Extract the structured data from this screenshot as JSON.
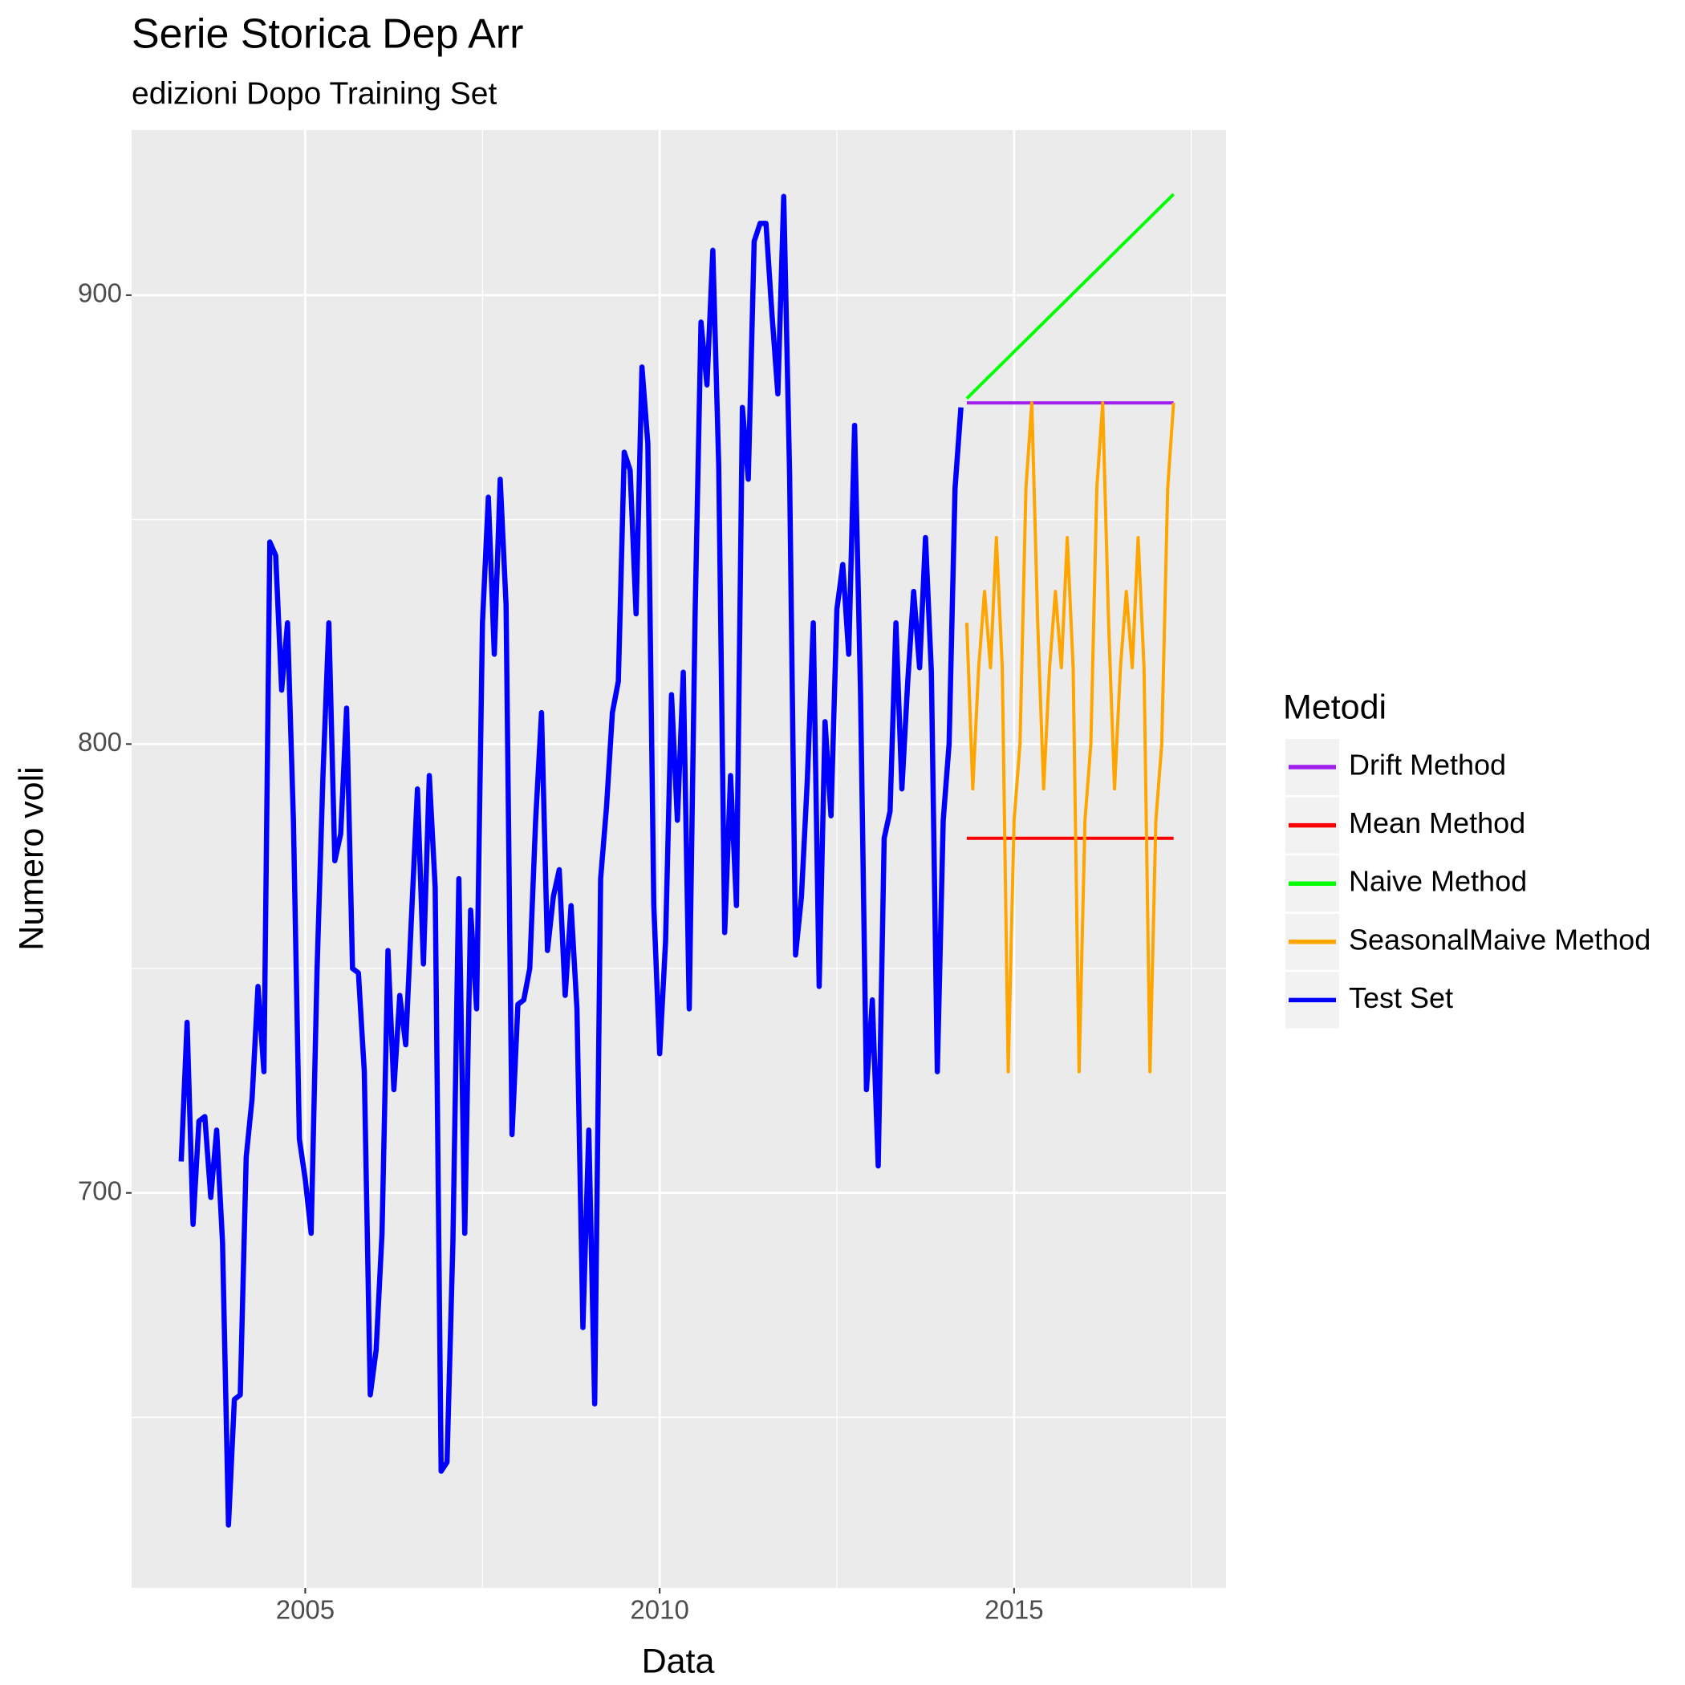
{
  "chart_data": {
    "type": "line",
    "title": "Serie Storica Dep Arr",
    "subtitle": "edizioni Dopo Training Set",
    "x_label": "Data",
    "y_label": "Numero voli",
    "legend_title": "Metodi",
    "legend_position": "right",
    "grid": true,
    "xlim": [
      2002.55,
      2017.99
    ],
    "ylim": [
      612,
      936.8
    ],
    "xticks": [
      2005,
      2010,
      2015
    ],
    "yticks": [
      700,
      800,
      900
    ],
    "xminor": [
      2007.5,
      2012.5,
      2017.5
    ],
    "yminor": [
      650,
      750,
      850
    ],
    "series": [
      {
        "name": "Drift Method",
        "color": "#A020F0",
        "width": 4,
        "x": [
          2014.333,
          2014.417,
          2014.5,
          2014.583,
          2014.667,
          2014.75,
          2014.833,
          2014.917,
          2015,
          2015.083,
          2015.167,
          2015.25,
          2015.333,
          2015.417,
          2015.5,
          2015.583,
          2015.667,
          2015.75,
          2015.833,
          2015.917,
          2016,
          2016.083,
          2016.167,
          2016.25,
          2016.333,
          2016.417,
          2016.5,
          2016.583,
          2016.667,
          2016.75,
          2016.833,
          2016.917,
          2017,
          2017.083,
          2017.167,
          2017.25
        ],
        "values": [
          876,
          876,
          876,
          876,
          876,
          876,
          876,
          876,
          876,
          876,
          876,
          876,
          876,
          876,
          876,
          876,
          876,
          876,
          876,
          876,
          876,
          876,
          876,
          876,
          876,
          876,
          876,
          876,
          876,
          876,
          876,
          876,
          876,
          876,
          876,
          876
        ]
      },
      {
        "name": "Mean Method",
        "color": "#FF0000",
        "width": 4,
        "x": [
          2014.333,
          2014.417,
          2014.5,
          2014.583,
          2014.667,
          2014.75,
          2014.833,
          2014.917,
          2015,
          2015.083,
          2015.167,
          2015.25,
          2015.333,
          2015.417,
          2015.5,
          2015.583,
          2015.667,
          2015.75,
          2015.833,
          2015.917,
          2016,
          2016.083,
          2016.167,
          2016.25,
          2016.333,
          2016.417,
          2016.5,
          2016.583,
          2016.667,
          2016.75,
          2016.833,
          2016.917,
          2017,
          2017.083,
          2017.167,
          2017.25
        ],
        "values": [
          779,
          779,
          779,
          779,
          779,
          779,
          779,
          779,
          779,
          779,
          779,
          779,
          779,
          779,
          779,
          779,
          779,
          779,
          779,
          779,
          779,
          779,
          779,
          779,
          779,
          779,
          779,
          779,
          779,
          779,
          779,
          779,
          779,
          779,
          779,
          779
        ]
      },
      {
        "name": "Naive Method",
        "color": "#00FF00",
        "width": 4,
        "x": [
          2014.333,
          2014.417,
          2014.5,
          2014.583,
          2014.667,
          2014.75,
          2014.833,
          2014.917,
          2015,
          2015.083,
          2015.167,
          2015.25,
          2015.333,
          2015.417,
          2015.5,
          2015.583,
          2015.667,
          2015.75,
          2015.833,
          2015.917,
          2016,
          2016.083,
          2016.167,
          2016.25,
          2016.333,
          2016.417,
          2016.5,
          2016.583,
          2016.667,
          2016.75,
          2016.833,
          2016.917,
          2017,
          2017.083,
          2017.167,
          2017.25
        ],
        "values": [
          877,
          878.3,
          879.6,
          880.9,
          882.2,
          883.5,
          884.8,
          886.1,
          887.4,
          888.7,
          890,
          891.3,
          892.6,
          893.9,
          895.2,
          896.5,
          897.8,
          899.1,
          900.4,
          901.7,
          903,
          904.3,
          905.6,
          906.9,
          908.2,
          909.5,
          910.8,
          912.1,
          913.4,
          914.7,
          916,
          917.3,
          918.6,
          919.9,
          921.2,
          922.5
        ]
      },
      {
        "name": "SeasonalMaive Method",
        "color": "#FFA500",
        "width": 4,
        "x": [
          2014.333,
          2014.417,
          2014.5,
          2014.583,
          2014.667,
          2014.75,
          2014.833,
          2014.917,
          2015,
          2015.083,
          2015.167,
          2015.25,
          2015.333,
          2015.417,
          2015.5,
          2015.583,
          2015.667,
          2015.75,
          2015.833,
          2015.917,
          2016,
          2016.083,
          2016.167,
          2016.25,
          2016.333,
          2016.417,
          2016.5,
          2016.583,
          2016.667,
          2016.75,
          2016.833,
          2016.917,
          2017,
          2017.083,
          2017.167,
          2017.25
        ],
        "values": [
          827,
          790,
          817,
          834,
          817,
          846,
          817,
          727,
          783,
          800,
          857,
          876,
          827,
          790,
          817,
          834,
          817,
          846,
          817,
          727,
          783,
          800,
          857,
          876,
          827,
          790,
          817,
          834,
          817,
          846,
          817,
          727,
          783,
          800,
          857,
          876
        ]
      },
      {
        "name": "Test Set",
        "color": "#0000FF",
        "width": 6.5,
        "x": [
          2003.25,
          2003.333,
          2003.417,
          2003.5,
          2003.583,
          2003.667,
          2003.75,
          2003.833,
          2003.917,
          2004,
          2004.083,
          2004.167,
          2004.25,
          2004.333,
          2004.417,
          2004.5,
          2004.583,
          2004.667,
          2004.75,
          2004.833,
          2004.917,
          2005,
          2005.083,
          2005.167,
          2005.25,
          2005.333,
          2005.417,
          2005.5,
          2005.583,
          2005.667,
          2005.75,
          2005.833,
          2005.917,
          2006,
          2006.083,
          2006.167,
          2006.25,
          2006.333,
          2006.417,
          2006.5,
          2006.583,
          2006.667,
          2006.75,
          2006.833,
          2006.917,
          2007,
          2007.083,
          2007.167,
          2007.25,
          2007.333,
          2007.417,
          2007.5,
          2007.583,
          2007.667,
          2007.75,
          2007.833,
          2007.917,
          2008,
          2008.083,
          2008.167,
          2008.25,
          2008.333,
          2008.417,
          2008.5,
          2008.583,
          2008.667,
          2008.75,
          2008.833,
          2008.917,
          2009,
          2009.083,
          2009.167,
          2009.25,
          2009.333,
          2009.417,
          2009.5,
          2009.583,
          2009.667,
          2009.75,
          2009.833,
          2009.917,
          2010,
          2010.083,
          2010.167,
          2010.25,
          2010.333,
          2010.417,
          2010.5,
          2010.583,
          2010.667,
          2010.75,
          2010.833,
          2010.917,
          2011,
          2011.083,
          2011.167,
          2011.25,
          2011.333,
          2011.417,
          2011.5,
          2011.583,
          2011.667,
          2011.75,
          2011.833,
          2011.917,
          2012,
          2012.083,
          2012.167,
          2012.25,
          2012.333,
          2012.417,
          2012.5,
          2012.583,
          2012.667,
          2012.75,
          2012.833,
          2012.917,
          2013,
          2013.083,
          2013.167,
          2013.25,
          2013.333,
          2013.417,
          2013.5,
          2013.583,
          2013.667,
          2013.75,
          2013.833,
          2013.917,
          2014,
          2014.083,
          2014.167,
          2014.25
        ],
        "values": [
          707,
          738,
          693,
          716,
          717,
          699,
          714,
          689,
          626,
          654,
          655,
          708,
          721,
          746,
          727,
          845,
          842,
          812,
          827,
          783,
          712,
          703,
          691,
          750,
          793,
          827,
          774,
          780,
          808,
          750,
          749,
          727,
          655,
          665,
          691,
          754,
          723,
          744,
          733,
          762,
          790,
          751,
          793,
          768,
          638,
          640,
          689,
          770,
          691,
          763,
          741,
          827,
          855,
          820,
          859,
          831,
          713,
          742,
          743,
          750,
          783,
          807,
          754,
          766,
          772,
          744,
          764,
          741,
          670,
          714,
          653,
          770,
          786,
          807,
          814,
          865,
          861,
          829,
          884,
          867,
          764,
          731,
          756,
          811,
          783,
          816,
          741,
          829,
          894,
          880,
          910,
          862,
          758,
          793,
          764,
          875,
          859,
          912,
          916,
          916,
          896,
          878,
          922,
          860,
          753,
          766,
          792,
          827,
          746,
          805,
          784,
          830,
          840,
          820,
          871,
          812,
          723,
          743,
          706,
          779,
          785,
          827,
          790,
          814,
          834,
          817,
          846,
          816,
          727,
          783,
          800,
          857,
          875
        ]
      }
    ]
  }
}
